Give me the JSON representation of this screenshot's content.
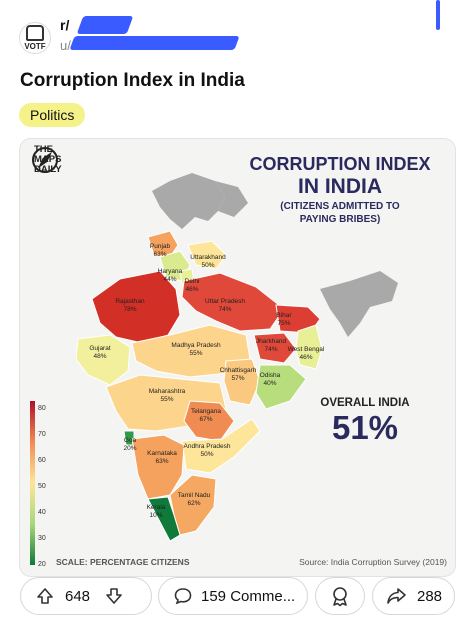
{
  "post": {
    "subreddit": "r/",
    "username": "u/",
    "title": "Corruption Index in India",
    "flair": "Politics",
    "votes": "648",
    "comments": "159 Comme...",
    "shares": "288"
  },
  "image": {
    "brand": [
      "THE",
      "MAPS",
      "DAILY"
    ],
    "heading_line1": "CORRUPTION INDEX",
    "heading_line2": "IN INDIA",
    "heading_line3": "(CITIZENS ADMITTED TO",
    "heading_line4": "PAYING BRIBES)",
    "overall_label": "OVERALL INDIA",
    "overall_value": "51%",
    "scale_label": "SCALE: PERCENTAGE CITIZENS",
    "source": "Source: India Corruption Survey (2019)",
    "scale_ticks": [
      "80",
      "70",
      "60",
      "50",
      "40",
      "30",
      "20"
    ],
    "states": [
      {
        "name": "Punjab",
        "value": "63%",
        "color": "#f4a25e"
      },
      {
        "name": "Uttarakhand",
        "value": "50%",
        "color": "#fde59a"
      },
      {
        "name": "Haryana",
        "value": "44%",
        "color": "#d9ea8f"
      },
      {
        "name": "Delhi",
        "value": "46%",
        "color": "#e8ef97"
      },
      {
        "name": "Rajasthan",
        "value": "78%",
        "color": "#d22f27"
      },
      {
        "name": "Uttar Pradesh",
        "value": "74%",
        "color": "#e0483a"
      },
      {
        "name": "Bihar",
        "value": "75%",
        "color": "#dc3e33"
      },
      {
        "name": "Gujarat",
        "value": "48%",
        "color": "#f2f09d"
      },
      {
        "name": "Madhya Pradesh",
        "value": "55%",
        "color": "#fcd48c"
      },
      {
        "name": "Jharkhand",
        "value": "74%",
        "color": "#e0483a"
      },
      {
        "name": "West Bengal",
        "value": "46%",
        "color": "#e8ef97"
      },
      {
        "name": "Chhattisgarh",
        "value": "57%",
        "color": "#fbc880"
      },
      {
        "name": "Odisha",
        "value": "40%",
        "color": "#b8dd7d"
      },
      {
        "name": "Maharashtra",
        "value": "55%",
        "color": "#fcd48c"
      },
      {
        "name": "Telangana",
        "value": "67%",
        "color": "#f08c52"
      },
      {
        "name": "Goa",
        "value": "20%",
        "color": "#2e9a4a"
      },
      {
        "name": "Andhra Pradesh",
        "value": "50%",
        "color": "#fde59a"
      },
      {
        "name": "Karnataka",
        "value": "63%",
        "color": "#f4a25e"
      },
      {
        "name": "Tamil Nadu",
        "value": "62%",
        "color": "#f5a862"
      },
      {
        "name": "Kerala",
        "value": "10%",
        "color": "#0f7a3a"
      }
    ]
  }
}
